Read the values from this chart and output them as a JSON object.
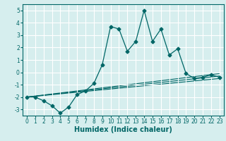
{
  "xlabel": "Humidex (Indice chaleur)",
  "background_color": "#d6eeee",
  "grid_color": "#ffffff",
  "line_color": "#006666",
  "xlim": [
    -0.5,
    23.5
  ],
  "ylim": [
    -3.5,
    5.5
  ],
  "yticks": [
    -3,
    -2,
    -1,
    0,
    1,
    2,
    3,
    4,
    5
  ],
  "xticks": [
    0,
    1,
    2,
    3,
    4,
    5,
    6,
    7,
    8,
    9,
    10,
    11,
    12,
    13,
    14,
    15,
    16,
    17,
    18,
    19,
    20,
    21,
    22,
    23
  ],
  "main_series": {
    "x": [
      0,
      1,
      2,
      3,
      4,
      5,
      6,
      7,
      8,
      9,
      10,
      11,
      12,
      13,
      14,
      15,
      16,
      17,
      18,
      19,
      20,
      21,
      22,
      23
    ],
    "y": [
      -2.0,
      -2.0,
      -2.3,
      -2.7,
      -3.3,
      -2.8,
      -1.8,
      -1.5,
      -0.9,
      0.6,
      3.7,
      3.5,
      1.7,
      2.5,
      5.0,
      2.5,
      3.5,
      1.4,
      1.9,
      -0.1,
      -0.5,
      -0.4,
      -0.2,
      -0.4
    ]
  },
  "trend_lines": [
    {
      "x0": 0,
      "y0": -2.0,
      "x1": 23,
      "y1": -0.1
    },
    {
      "x0": 0,
      "y0": -2.0,
      "x1": 23,
      "y1": -0.3
    },
    {
      "x0": 0,
      "y0": -2.0,
      "x1": 23,
      "y1": -0.5
    }
  ]
}
